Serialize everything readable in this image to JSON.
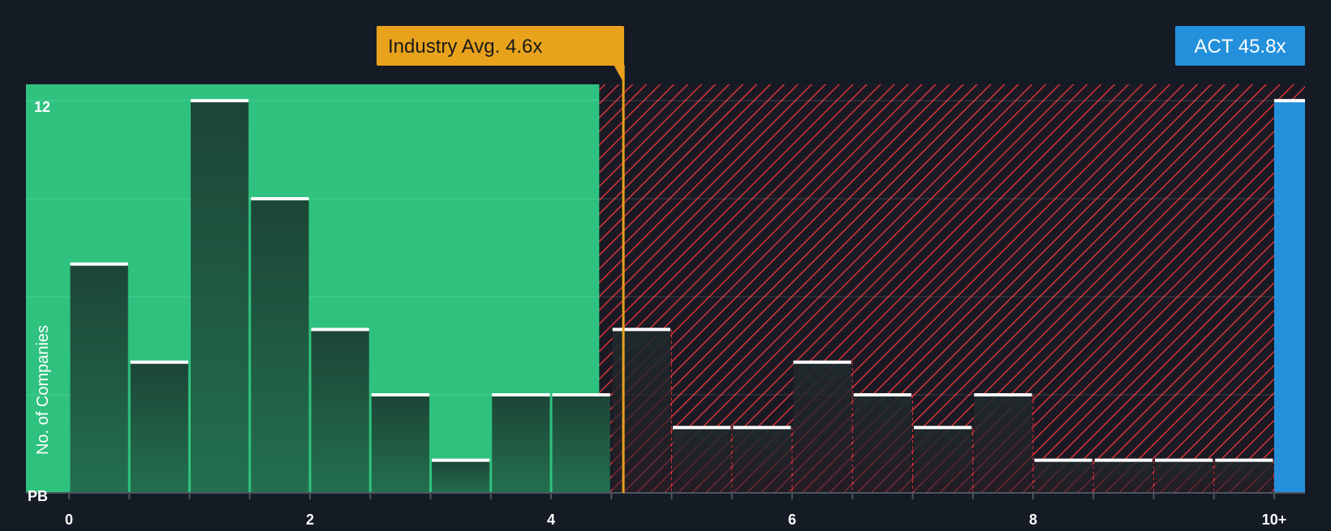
{
  "chart_data": {
    "type": "bar",
    "xlabel": "PB",
    "ylabel": "No. of Companies",
    "x_ticks": [
      "0",
      "2",
      "4",
      "6",
      "8",
      "10+"
    ],
    "y_ticks": [
      12
    ],
    "ylim": [
      0,
      12.5
    ],
    "bin_width": 0.5,
    "bins": [
      {
        "start": 0.0,
        "count": 7
      },
      {
        "start": 0.5,
        "count": 4
      },
      {
        "start": 1.0,
        "count": 12
      },
      {
        "start": 1.5,
        "count": 9
      },
      {
        "start": 2.0,
        "count": 5
      },
      {
        "start": 2.5,
        "count": 3
      },
      {
        "start": 3.0,
        "count": 1
      },
      {
        "start": 3.5,
        "count": 3
      },
      {
        "start": 4.0,
        "count": 3
      },
      {
        "start": 4.5,
        "count": 5
      },
      {
        "start": 5.0,
        "count": 2
      },
      {
        "start": 5.5,
        "count": 2
      },
      {
        "start": 6.0,
        "count": 4
      },
      {
        "start": 6.5,
        "count": 3
      },
      {
        "start": 7.0,
        "count": 2
      },
      {
        "start": 7.5,
        "count": 3
      },
      {
        "start": 8.0,
        "count": 1
      },
      {
        "start": 8.5,
        "count": 1
      },
      {
        "start": 9.0,
        "count": 1
      },
      {
        "start": 9.5,
        "count": 1
      }
    ],
    "fair_value_threshold": 4.4,
    "industry_avg": {
      "value": 4.6,
      "label": "Industry Avg. 4.6x"
    },
    "company": {
      "ticker": "ACT",
      "value": 45.8,
      "label": "ACT 45.8x",
      "bar_count": 12
    }
  },
  "colors": {
    "background": "#151b24",
    "green_zone": "#2ec27e",
    "red_hatch": "#d8343b",
    "bar_dark": "#1d4337",
    "bar_cap": "#ffffff",
    "industry": "#e8a21b",
    "company": "#2490dc"
  }
}
